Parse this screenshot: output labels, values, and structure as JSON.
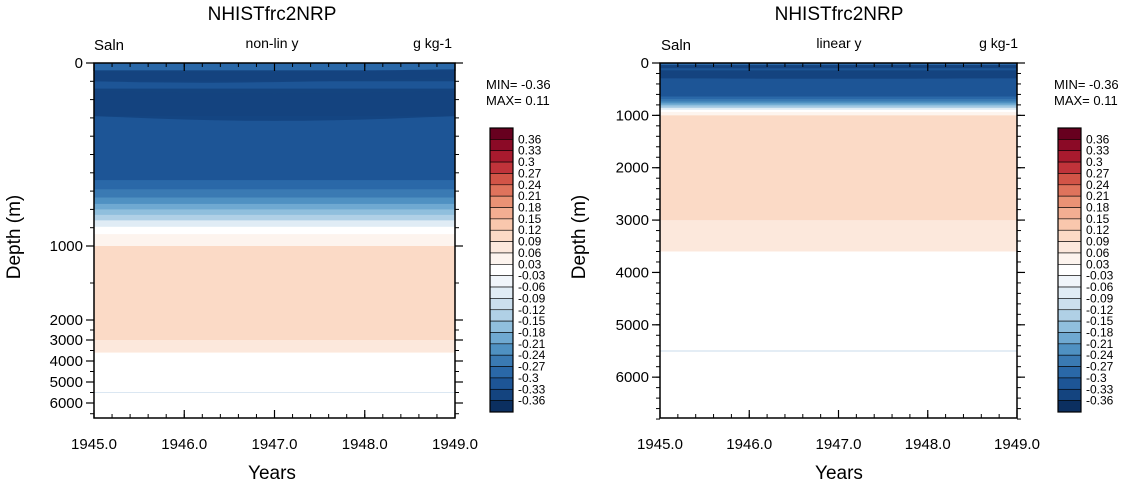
{
  "panels": [
    {
      "title": "NHISTfrc2NRP",
      "left_label": "Saln",
      "center_label": "non-lin y",
      "right_label": "g kg-1",
      "min_label": "MIN= -0.36",
      "max_label": "MAX=  0.11",
      "xlabel": "Years",
      "ylabel": "Depth (m)",
      "x_ticks": [
        "1945.0",
        "1946.0",
        "1947.0",
        "1948.0",
        "1949.0"
      ],
      "y_ticks": [
        "0",
        "1000",
        "2000",
        "3000",
        "4000",
        "5000",
        "6000"
      ]
    },
    {
      "title": "NHISTfrc2NRP",
      "left_label": "Saln",
      "center_label": "linear y",
      "right_label": "g kg-1",
      "min_label": "MIN= -0.36",
      "max_label": "MAX=  0.11",
      "xlabel": "Years",
      "ylabel": "Depth (m)",
      "x_ticks": [
        "1945.0",
        "1946.0",
        "1947.0",
        "1948.0",
        "1949.0"
      ],
      "y_ticks": [
        "0",
        "1000",
        "2000",
        "3000",
        "4000",
        "5000",
        "6000"
      ]
    }
  ],
  "colorbar": {
    "labels": [
      "0.36",
      "0.33",
      "0.3",
      "0.27",
      "0.24",
      "0.21",
      "0.18",
      "0.15",
      "0.12",
      "0.09",
      "0.06",
      "0.03",
      "-0.03",
      "-0.06",
      "-0.09",
      "-0.12",
      "-0.15",
      "-0.18",
      "-0.21",
      "-0.24",
      "-0.27",
      "-0.3",
      "-0.33",
      "-0.36"
    ],
    "colors": [
      "#67001f",
      "#8b0a26",
      "#a81a2e",
      "#c0333a",
      "#d25447",
      "#df735c",
      "#ea9275",
      "#f3ae92",
      "#f9c7ad",
      "#fbdac6",
      "#fce8dc",
      "#fdf4ee",
      "#ffffff",
      "#f0f5fa",
      "#e0ecf5",
      "#cbdfee",
      "#b0d0e6",
      "#90bfdd",
      "#6fa9d1",
      "#4f91c2",
      "#3a7ab3",
      "#2a68a8",
      "#1d5596",
      "#14447f",
      "#0b2f60"
    ]
  },
  "chart_data": [
    {
      "type": "heatmap",
      "title": "NHISTfrc2NRP",
      "variable": "Saln",
      "units": "g kg-1",
      "y_scale": "non-lin y",
      "xlabel": "Years",
      "ylabel": "Depth (m)",
      "xlim": [
        1945.0,
        1949.0
      ],
      "ylim": [
        6700,
        0
      ],
      "min": -0.36,
      "max": 0.11,
      "depth_bands": [
        {
          "top": 0,
          "bottom": 40,
          "value": -0.27
        },
        {
          "top": 40,
          "bottom": 100,
          "value": -0.33
        },
        {
          "top": 100,
          "bottom": 140,
          "value": -0.3
        },
        {
          "top": 140,
          "bottom": 290,
          "value": -0.33
        },
        {
          "top": 290,
          "bottom": 640,
          "value": -0.3
        },
        {
          "top": 640,
          "bottom": 690,
          "value": -0.27
        },
        {
          "top": 690,
          "bottom": 735,
          "value": -0.24
        },
        {
          "top": 735,
          "bottom": 770,
          "value": -0.21
        },
        {
          "top": 770,
          "bottom": 800,
          "value": -0.18
        },
        {
          "top": 800,
          "bottom": 830,
          "value": -0.15
        },
        {
          "top": 830,
          "bottom": 860,
          "value": -0.12
        },
        {
          "top": 860,
          "bottom": 895,
          "value": -0.06
        },
        {
          "top": 895,
          "bottom": 935,
          "value": 0.0
        },
        {
          "top": 935,
          "bottom": 1000,
          "value": 0.04
        },
        {
          "top": 1000,
          "bottom": 3000,
          "value": 0.11
        },
        {
          "top": 3000,
          "bottom": 3600,
          "value": 0.07
        },
        {
          "top": 3600,
          "bottom": 6700,
          "value": 0.0
        }
      ]
    },
    {
      "type": "heatmap",
      "title": "NHISTfrc2NRP",
      "variable": "Saln",
      "units": "g kg-1",
      "y_scale": "linear y",
      "xlabel": "Years",
      "ylabel": "Depth (m)",
      "xlim": [
        1945.0,
        1949.0
      ],
      "ylim": [
        6800,
        0
      ],
      "min": -0.36,
      "max": 0.11,
      "depth_bands": [
        {
          "top": 0,
          "bottom": 40,
          "value": -0.27
        },
        {
          "top": 40,
          "bottom": 100,
          "value": -0.33
        },
        {
          "top": 100,
          "bottom": 140,
          "value": -0.3
        },
        {
          "top": 140,
          "bottom": 290,
          "value": -0.33
        },
        {
          "top": 290,
          "bottom": 640,
          "value": -0.3
        },
        {
          "top": 640,
          "bottom": 690,
          "value": -0.27
        },
        {
          "top": 690,
          "bottom": 735,
          "value": -0.24
        },
        {
          "top": 735,
          "bottom": 770,
          "value": -0.21
        },
        {
          "top": 770,
          "bottom": 800,
          "value": -0.18
        },
        {
          "top": 800,
          "bottom": 830,
          "value": -0.15
        },
        {
          "top": 830,
          "bottom": 860,
          "value": -0.12
        },
        {
          "top": 860,
          "bottom": 895,
          "value": -0.06
        },
        {
          "top": 895,
          "bottom": 935,
          "value": 0.0
        },
        {
          "top": 935,
          "bottom": 1000,
          "value": 0.04
        },
        {
          "top": 1000,
          "bottom": 3000,
          "value": 0.11
        },
        {
          "top": 3000,
          "bottom": 3600,
          "value": 0.07
        },
        {
          "top": 3600,
          "bottom": 6800,
          "value": 0.0
        }
      ]
    }
  ]
}
